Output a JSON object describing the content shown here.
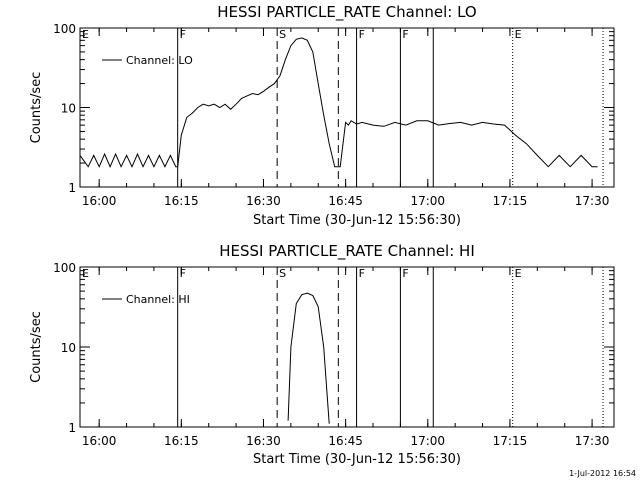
{
  "footer": "1-Jul-2012 16:54",
  "chart_data": [
    {
      "type": "line",
      "title": "HESSI PARTICLE_RATE Channel: LO",
      "xlabel": "Start Time (30-Jun-12 15:56:30)",
      "ylabel": "Counts/sec",
      "yscale": "log",
      "ylim": [
        1,
        100
      ],
      "xlim": [
        "15:56:30",
        "17:34:00"
      ],
      "x_ticks": [
        "16:00",
        "16:15",
        "16:30",
        "16:45",
        "17:00",
        "17:15",
        "17:30"
      ],
      "y_ticks": [
        "1",
        "10",
        "100"
      ],
      "legend": {
        "position": "top-left",
        "entries": [
          "Channel: LO"
        ]
      },
      "series": [
        {
          "name": "Channel: LO",
          "x": [
            "15:56:30",
            "15:58:00",
            "15:59:00",
            "16:00:00",
            "16:01:00",
            "16:02:00",
            "16:03:00",
            "16:04:00",
            "16:05:00",
            "16:06:00",
            "16:07:00",
            "16:08:00",
            "16:09:00",
            "16:10:00",
            "16:11:00",
            "16:12:00",
            "16:13:00",
            "16:14:00",
            "16:14:20",
            "16:15:00",
            "16:16:00",
            "16:17:00",
            "16:18:00",
            "16:19:00",
            "16:20:00",
            "16:21:00",
            "16:22:00",
            "16:23:00",
            "16:24:00",
            "16:25:00",
            "16:26:00",
            "16:27:00",
            "16:28:00",
            "16:29:00",
            "16:30:00",
            "16:31:00",
            "16:32:00",
            "16:33:00",
            "16:34:00",
            "16:35:00",
            "16:36:00",
            "16:37:00",
            "16:38:00",
            "16:39:00",
            "16:40:00",
            "16:41:00",
            "16:42:00",
            "16:43:00",
            "16:43:40",
            "16:44:00",
            "16:45:00",
            "16:45:30",
            "16:46:00",
            "16:47:00",
            "16:48:00",
            "16:50:00",
            "16:52:00",
            "16:54:00",
            "16:56:00",
            "16:58:00",
            "17:00:00",
            "17:02:00",
            "17:04:00",
            "17:06:00",
            "17:08:00",
            "17:10:00",
            "17:12:00",
            "17:14:00",
            "17:16:00",
            "17:18:00",
            "17:20:00",
            "17:22:00",
            "17:24:00",
            "17:26:00",
            "17:28:00",
            "17:30:00",
            "17:31:00"
          ],
          "values": [
            2.5,
            1.8,
            2.5,
            1.8,
            2.6,
            1.8,
            2.6,
            1.8,
            2.5,
            1.8,
            2.6,
            1.8,
            2.5,
            1.8,
            2.5,
            1.8,
            2.5,
            1.8,
            1.8,
            4.5,
            7.5,
            8.5,
            10,
            11,
            10.5,
            11,
            10,
            11,
            9.5,
            11,
            13,
            14,
            15,
            14.5,
            16,
            18,
            20,
            25,
            40,
            60,
            72,
            75,
            70,
            50,
            20,
            8,
            3.5,
            1.8,
            1.8,
            1.8,
            6.5,
            6,
            6.8,
            6.2,
            6.5,
            6,
            5.8,
            6.5,
            6,
            6.8,
            6.8,
            6,
            6.3,
            6.5,
            6,
            6.5,
            6.2,
            6,
            4.5,
            3.5,
            2.5,
            1.8,
            2.5,
            1.8,
            2.5,
            1.8,
            1.8
          ]
        }
      ],
      "markers": [
        {
          "x": "16:14:20",
          "label": "F",
          "style": "solid"
        },
        {
          "x": "16:32:30",
          "label": "S",
          "style": "dashed"
        },
        {
          "x": "16:43:40",
          "label": "",
          "style": "dashed"
        },
        {
          "x": "16:47:00",
          "label": "F",
          "style": "solid"
        },
        {
          "x": "16:55:00",
          "label": "F",
          "style": "solid"
        },
        {
          "x": "17:01:00",
          "label": "",
          "style": "solid"
        },
        {
          "x": "17:15:30",
          "label": "E",
          "style": "dotted"
        },
        {
          "x": "17:32:00",
          "label": "",
          "style": "dotted"
        }
      ],
      "top_left_label": "E"
    },
    {
      "type": "line",
      "title": "HESSI PARTICLE_RATE Channel: HI",
      "xlabel": "Start Time (30-Jun-12 15:56:30)",
      "ylabel": "Counts/sec",
      "yscale": "log",
      "ylim": [
        1,
        100
      ],
      "xlim": [
        "15:56:30",
        "17:34:00"
      ],
      "x_ticks": [
        "16:00",
        "16:15",
        "16:30",
        "16:45",
        "17:00",
        "17:15",
        "17:30"
      ],
      "y_ticks": [
        "1",
        "10",
        "100"
      ],
      "legend": {
        "position": "top-left",
        "entries": [
          "Channel: HI"
        ]
      },
      "series": [
        {
          "name": "Channel: HI",
          "x": [
            "16:34:30",
            "16:35:00",
            "16:36:00",
            "16:37:00",
            "16:38:00",
            "16:39:00",
            "16:40:00",
            "16:41:00",
            "16:42:00"
          ],
          "values": [
            1.2,
            10,
            35,
            45,
            47,
            44,
            32,
            10,
            1.1
          ]
        }
      ],
      "markers": [
        {
          "x": "16:14:20",
          "label": "F",
          "style": "solid"
        },
        {
          "x": "16:32:30",
          "label": "S",
          "style": "dashed"
        },
        {
          "x": "16:43:40",
          "label": "",
          "style": "dashed"
        },
        {
          "x": "16:47:00",
          "label": "F",
          "style": "solid"
        },
        {
          "x": "16:55:00",
          "label": "F",
          "style": "solid"
        },
        {
          "x": "17:01:00",
          "label": "",
          "style": "solid"
        },
        {
          "x": "17:15:30",
          "label": "E",
          "style": "dotted"
        },
        {
          "x": "17:32:00",
          "label": "",
          "style": "dotted"
        }
      ],
      "top_left_label": "E"
    }
  ]
}
